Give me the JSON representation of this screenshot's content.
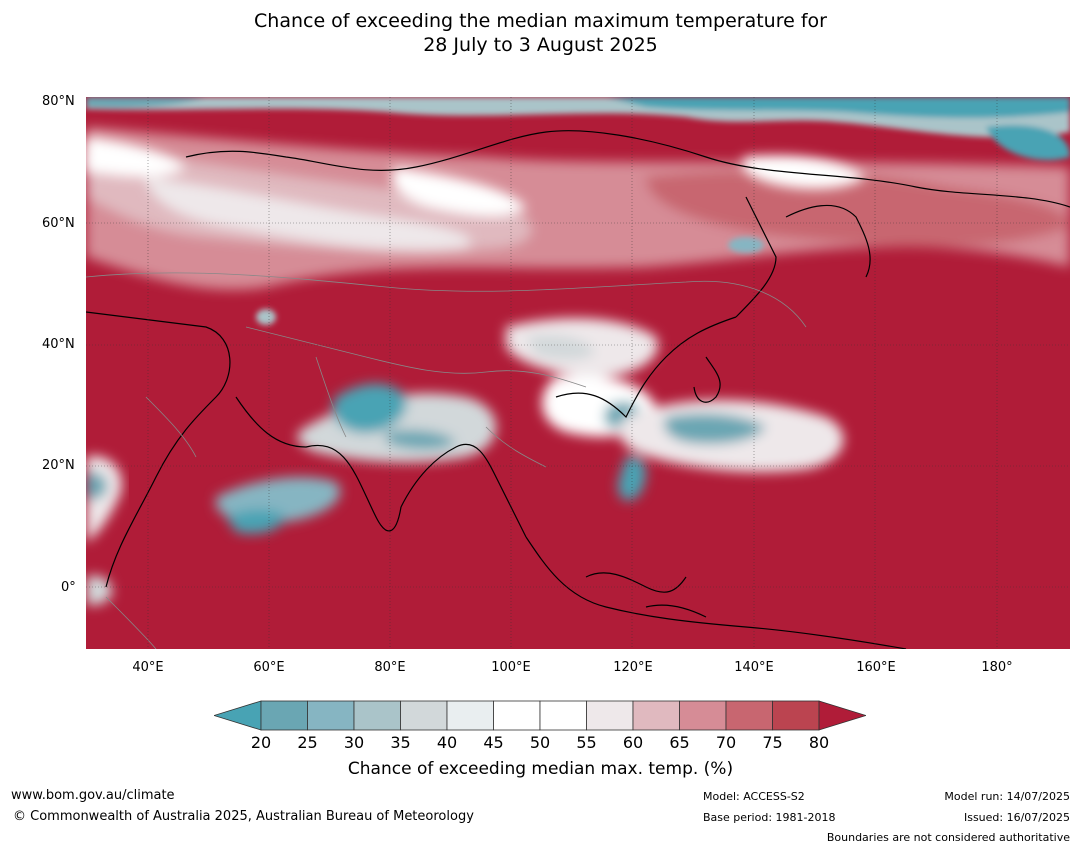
{
  "title": {
    "line1": "Chance of exceeding the median maximum temperature for",
    "line2": "28 July to 3 August 2025"
  },
  "map": {
    "lat_labels": [
      "80°N",
      "60°N",
      "40°N",
      "20°N",
      "0°"
    ],
    "lon_labels": [
      "40°E",
      "60°E",
      "80°E",
      "100°E",
      "120°E",
      "140°E",
      "160°E",
      "180°"
    ],
    "base_color": "#b01c38"
  },
  "legend": {
    "title": "Chance of exceeding median max. temp. (%)",
    "tick_labels": [
      "20",
      "25",
      "30",
      "35",
      "40",
      "45",
      "50",
      "55",
      "60",
      "65",
      "70",
      "75",
      "80"
    ],
    "colors": [
      "#48a3b4",
      "#6aa6b3",
      "#86b5c2",
      "#aac4c9",
      "#d2d8da",
      "#e9eef0",
      "#ffffff",
      "#ffffff",
      "#eee8ea",
      "#e0b9bf",
      "#d68c96",
      "#c86670",
      "#bb4450",
      "#b01c38"
    ]
  },
  "footer": {
    "website": "www.bom.gov.au/climate",
    "copyright": "© Commonwealth of Australia 2025, Australian Bureau of Meteorology",
    "model": "Model: ACCESS-S2",
    "base_period": "Base period: 1981-2018",
    "model_run": "Model run: 14/07/2025",
    "issued": "Issued: 16/07/2025",
    "disclaimer": "Boundaries are not considered authoritative"
  }
}
